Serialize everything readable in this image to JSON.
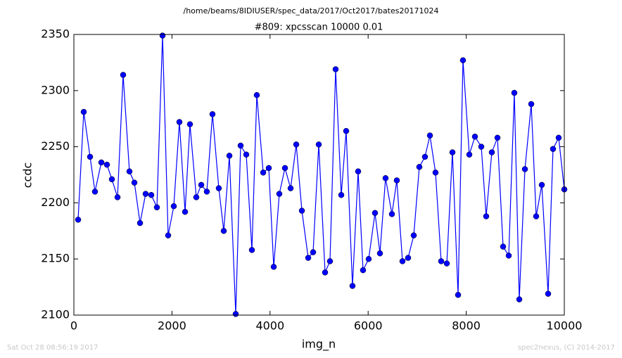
{
  "chart_data": {
    "type": "line",
    "suptitle": "/home/beams/8IDIUSER/spec_data/2017/Oct2017/bates20171024",
    "title": "#809: xpcsscan 10000 0.01",
    "x_label": "img_n",
    "y_label": "ccdc",
    "footer_left": "Sat Oct 28 08:56:19 2017",
    "footer_right": "spec2nexus, (C) 2014-2017",
    "xlim": [
      0,
      10000
    ],
    "xticks": [
      0,
      2000,
      4000,
      6000,
      8000,
      10000
    ],
    "ylim": [
      2100,
      2350
    ],
    "yticks": [
      2100,
      2150,
      2200,
      2250,
      2300,
      2350
    ],
    "grid": false,
    "marker": "circle",
    "x": [
      86,
      201,
      330,
      430,
      560,
      674,
      775,
      890,
      1004,
      1133,
      1234,
      1349,
      1463,
      1578,
      1693,
      1808,
      1922,
      2037,
      2152,
      2267,
      2367,
      2496,
      2597,
      2711,
      2826,
      2955,
      3056,
      3171,
      3300,
      3400,
      3515,
      3630,
      3730,
      3860,
      3974,
      4075,
      4189,
      4304,
      4419,
      4534,
      4649,
      4778,
      4878,
      4993,
      5122,
      5222,
      5337,
      5452,
      5552,
      5681,
      5796,
      5896,
      6011,
      6140,
      6241,
      6355,
      6485,
      6585,
      6700,
      6815,
      6930,
      7044,
      7159,
      7260,
      7374,
      7489,
      7604,
      7719,
      7834,
      7934,
      8063,
      8178,
      8307,
      8407,
      8522,
      8637,
      8752,
      8867,
      8981,
      9082,
      9197,
      9326,
      9426,
      9541,
      9670,
      9770,
      9885,
      10000
    ],
    "series": [
      {
        "name": "ccdc",
        "color": "#0000ff",
        "values": [
          2185,
          2281,
          2241,
          2210,
          2236,
          2234,
          2221,
          2205,
          2314,
          2228,
          2218,
          2182,
          2208,
          2207,
          2196,
          2349,
          2171,
          2197,
          2272,
          2192,
          2270,
          2205,
          2216,
          2210,
          2279,
          2213,
          2175,
          2242,
          2101,
          2251,
          2243,
          2158,
          2296,
          2227,
          2231,
          2143,
          2208,
          2231,
          2213,
          2252,
          2193,
          2151,
          2156,
          2252,
          2138,
          2148,
          2319,
          2207,
          2264,
          2126,
          2228,
          2140,
          2150,
          2191,
          2155,
          2222,
          2190,
          2220,
          2148,
          2151,
          2171,
          2232,
          2241,
          2260,
          2227,
          2148,
          2146,
          2245,
          2118,
          2327,
          2243,
          2259,
          2250,
          2188,
          2245,
          2258,
          2161,
          2153,
          2298,
          2114,
          2230,
          2288,
          2188,
          2216,
          2119,
          2248,
          2258,
          2212
        ]
      }
    ]
  }
}
